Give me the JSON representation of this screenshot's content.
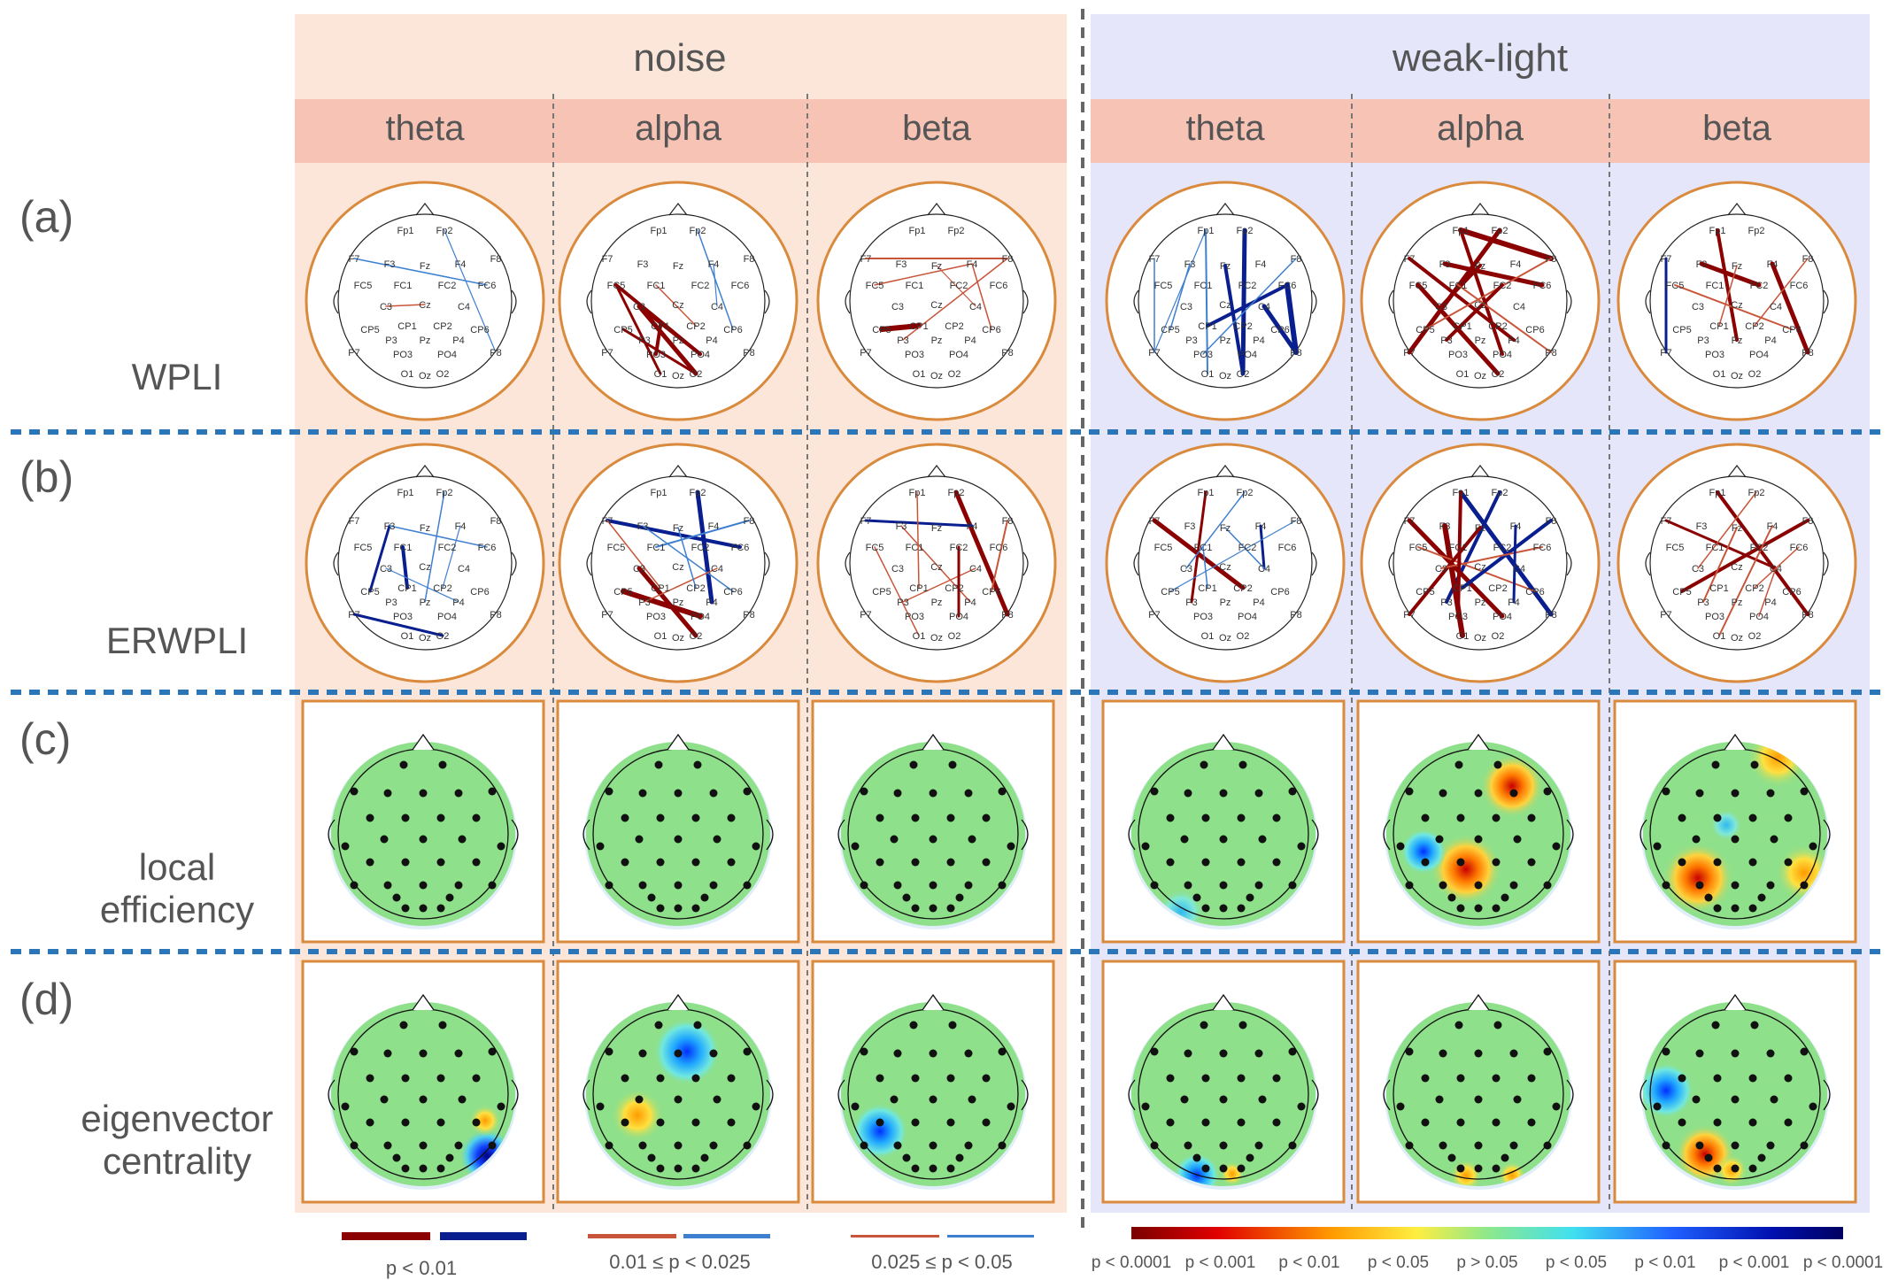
{
  "conditions": {
    "noise": "noise",
    "weak_light": "weak-light"
  },
  "bands": [
    "theta",
    "alpha",
    "beta"
  ],
  "rows": {
    "a": {
      "label": "(a)",
      "title": "WPLI"
    },
    "b": {
      "label": "(b)",
      "title": "ERWPLI"
    },
    "c": {
      "label": "(c)",
      "title_line1": "local",
      "title_line2": "efficiency"
    },
    "d": {
      "label": "(d)",
      "title_line1": "eigenvector",
      "title_line2": "centrality"
    }
  },
  "electrodes": {
    "Fp1": "Fp1",
    "Fp2": "Fp2",
    "F7": "F7",
    "F3": "F3",
    "Fz": "Fz",
    "F4": "F4",
    "F8": "F8",
    "FC5": "FC5",
    "FC1": "FC1",
    "FC2": "FC2",
    "FC6": "FC6",
    "C3": "C3",
    "Cz": "Cz",
    "C4": "C4",
    "CP5": "CP5",
    "CP1": "CP1",
    "CP2": "CP2",
    "CP6": "CP6",
    "P7": "P7",
    "P3": "P3",
    "Pz": "Pz",
    "P4": "P4",
    "P8": "P8",
    "PO3": "PO3",
    "PO4": "PO4",
    "O1": "O1",
    "Oz": "Oz",
    "O2": "O2"
  },
  "legend": {
    "p1": "p < 0.01",
    "p2": "0.01 ≤ p < 0.025",
    "p3": "0.025 ≤ p < 0.05",
    "colorbar_ticks": [
      "p < 0.0001",
      "p < 0.001",
      "p < 0.01",
      "p < 0.05",
      "p > 0.05",
      "p < 0.05",
      "p < 0.01",
      "p < 0.001",
      "p < 0.0001"
    ]
  },
  "colors": {
    "noise_bg": "#fbe6d9",
    "weak_bg": "#e6e6fb",
    "band_header_bg": "#f7c3b5",
    "orange_frame": "#d98a3c",
    "dashed_blue": "#2a76b8",
    "red_strong": "#8b0000",
    "red_mid": "#c8553a",
    "blue_strong": "#0a1f8f",
    "blue_mid": "#3f7fcf",
    "topo_green": "#8fe08a"
  }
}
